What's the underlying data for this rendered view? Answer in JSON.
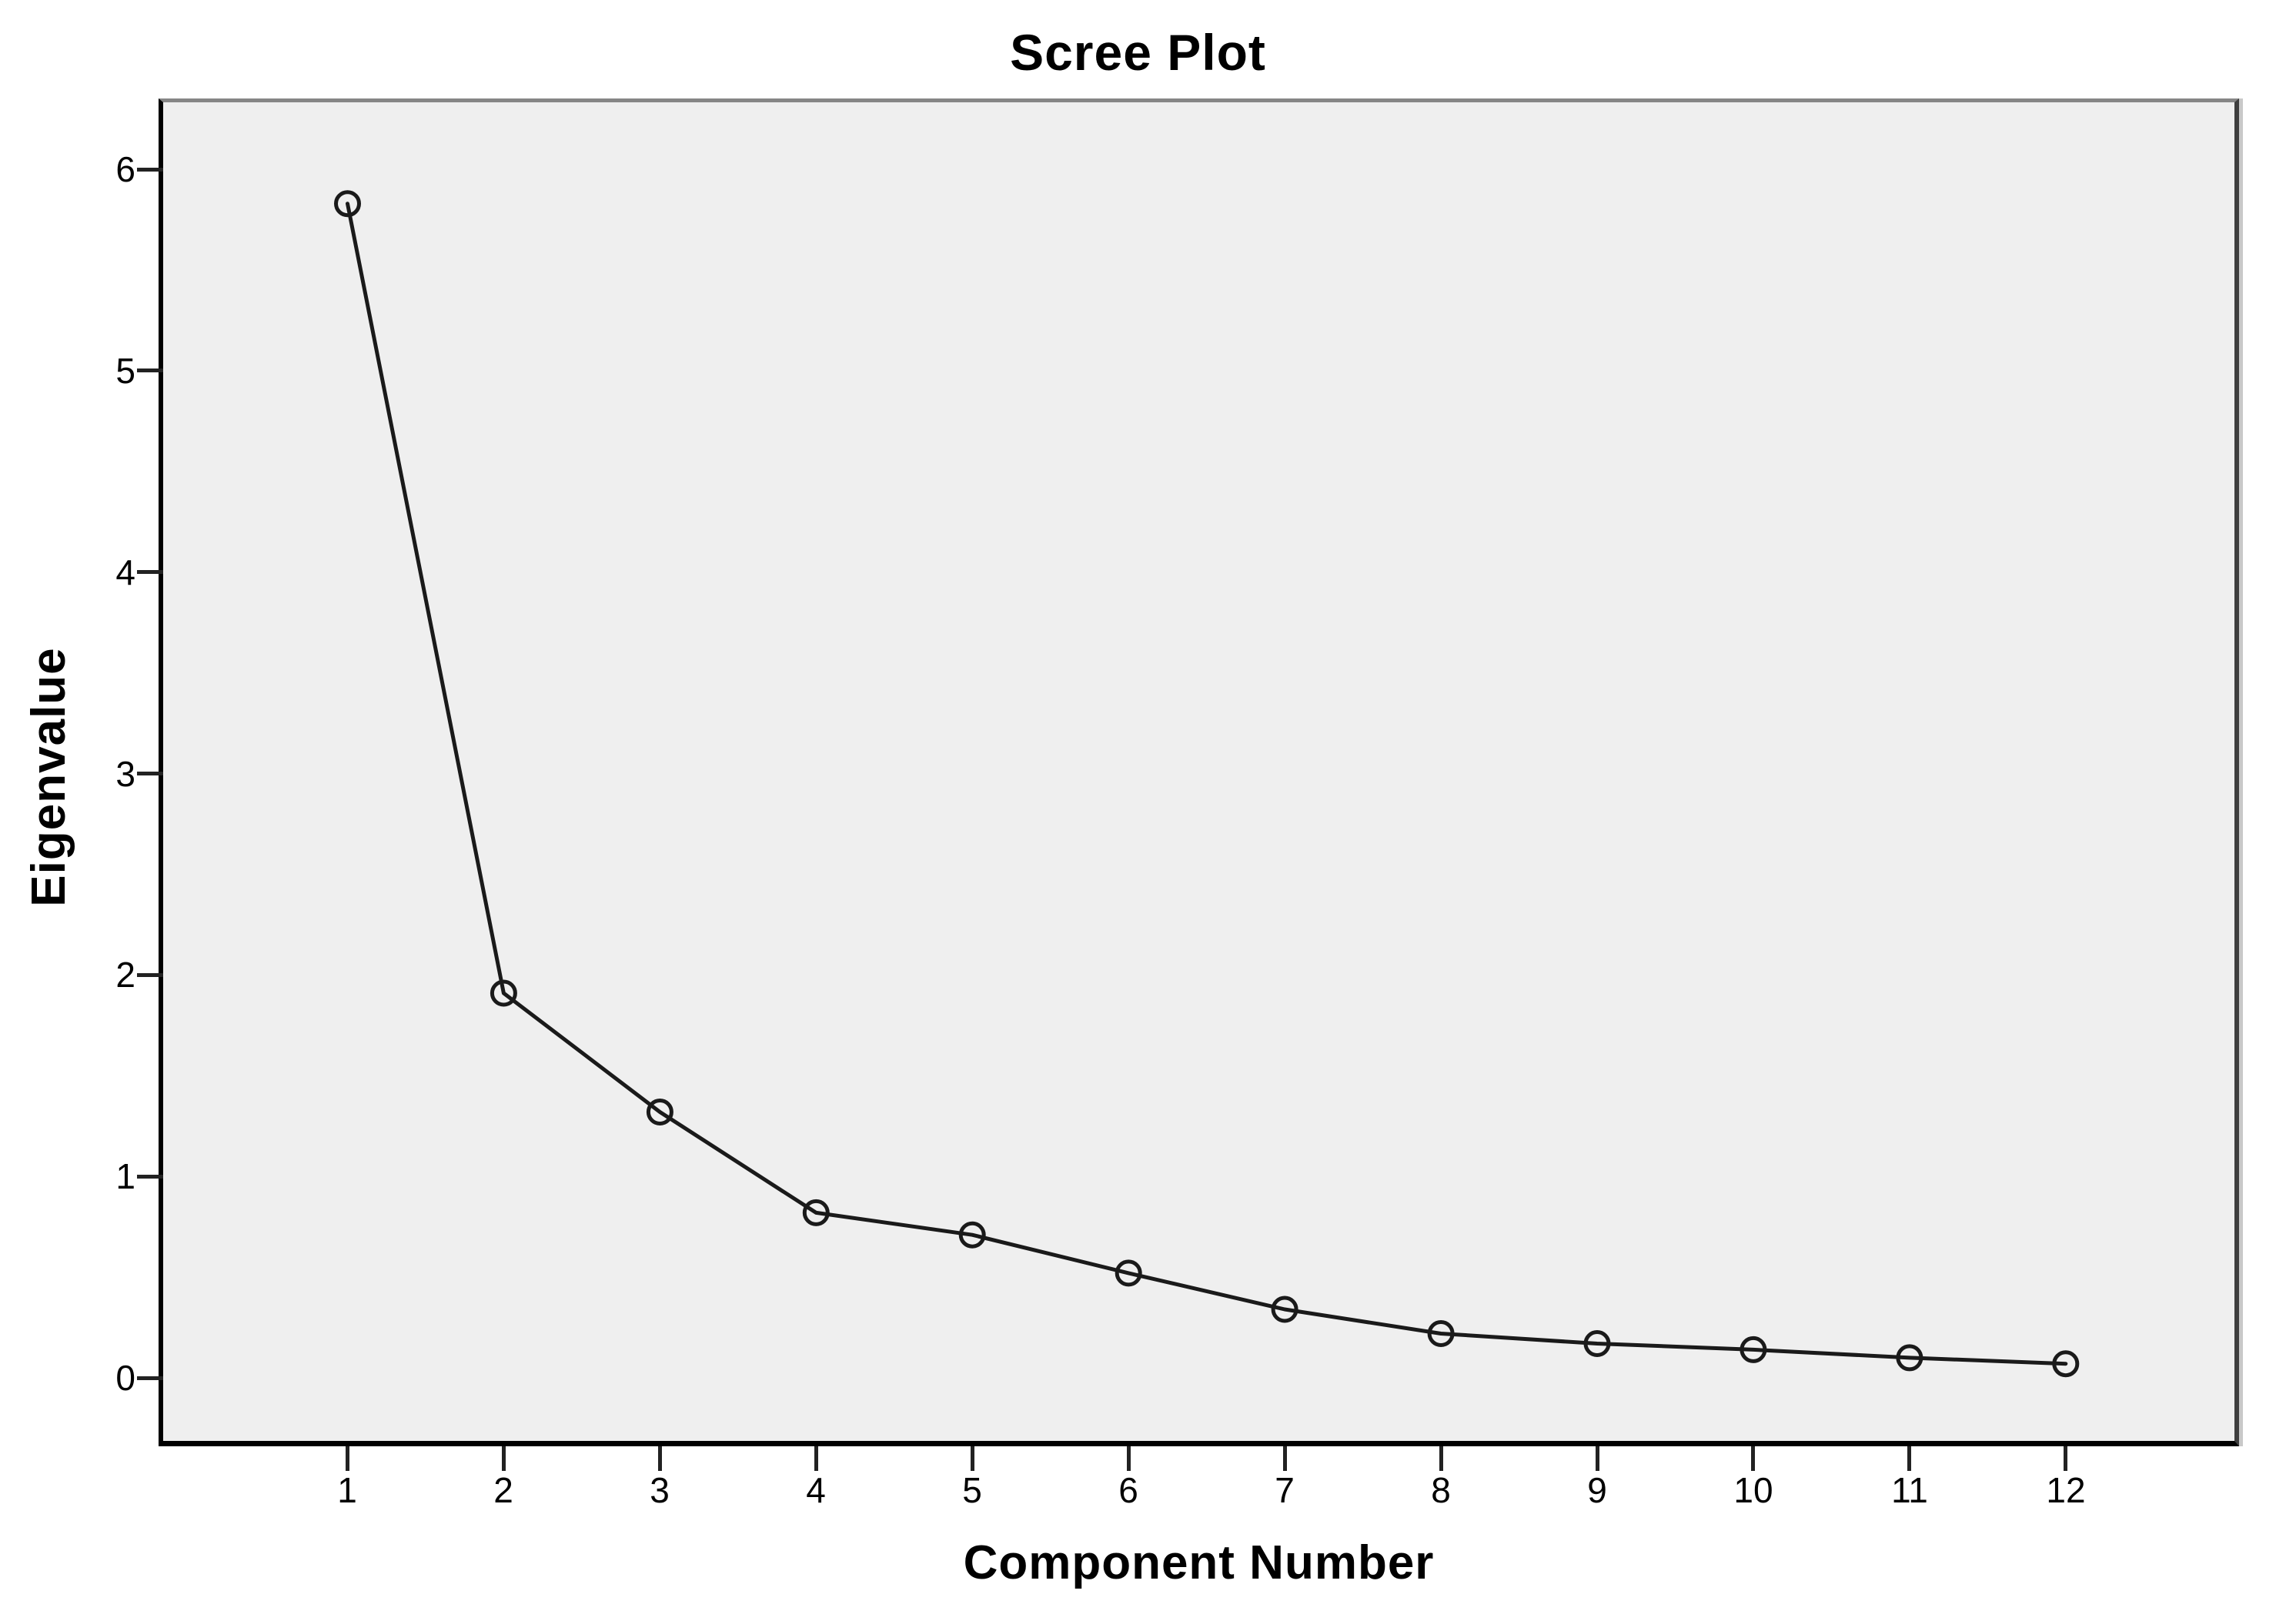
{
  "chart_data": {
    "type": "line",
    "title": "Scree Plot",
    "xlabel": "Component Number",
    "ylabel": "Eigenvalue",
    "series": [
      {
        "name": "Eigenvalue",
        "x": [
          1,
          2,
          3,
          4,
          5,
          6,
          7,
          8,
          9,
          10,
          11,
          12
        ],
        "values": [
          5.83,
          1.91,
          1.32,
          0.82,
          0.71,
          0.52,
          0.34,
          0.22,
          0.17,
          0.14,
          0.1,
          0.07
        ]
      }
    ],
    "x_ticks": [
      1,
      2,
      3,
      4,
      5,
      6,
      7,
      8,
      9,
      10,
      11,
      12
    ],
    "y_ticks": [
      0,
      1,
      2,
      3,
      4,
      5,
      6
    ],
    "xlim": [
      -0.18,
      13.08
    ],
    "ylim": [
      -0.313,
      6.333
    ],
    "grid": false,
    "legend_position": "none",
    "marker": "open-circle",
    "line_color": "#1a1a1a",
    "marker_color": "#1a1a1a",
    "plot_bg_color": "#efefef",
    "page_bg_color": "#ffffff"
  }
}
